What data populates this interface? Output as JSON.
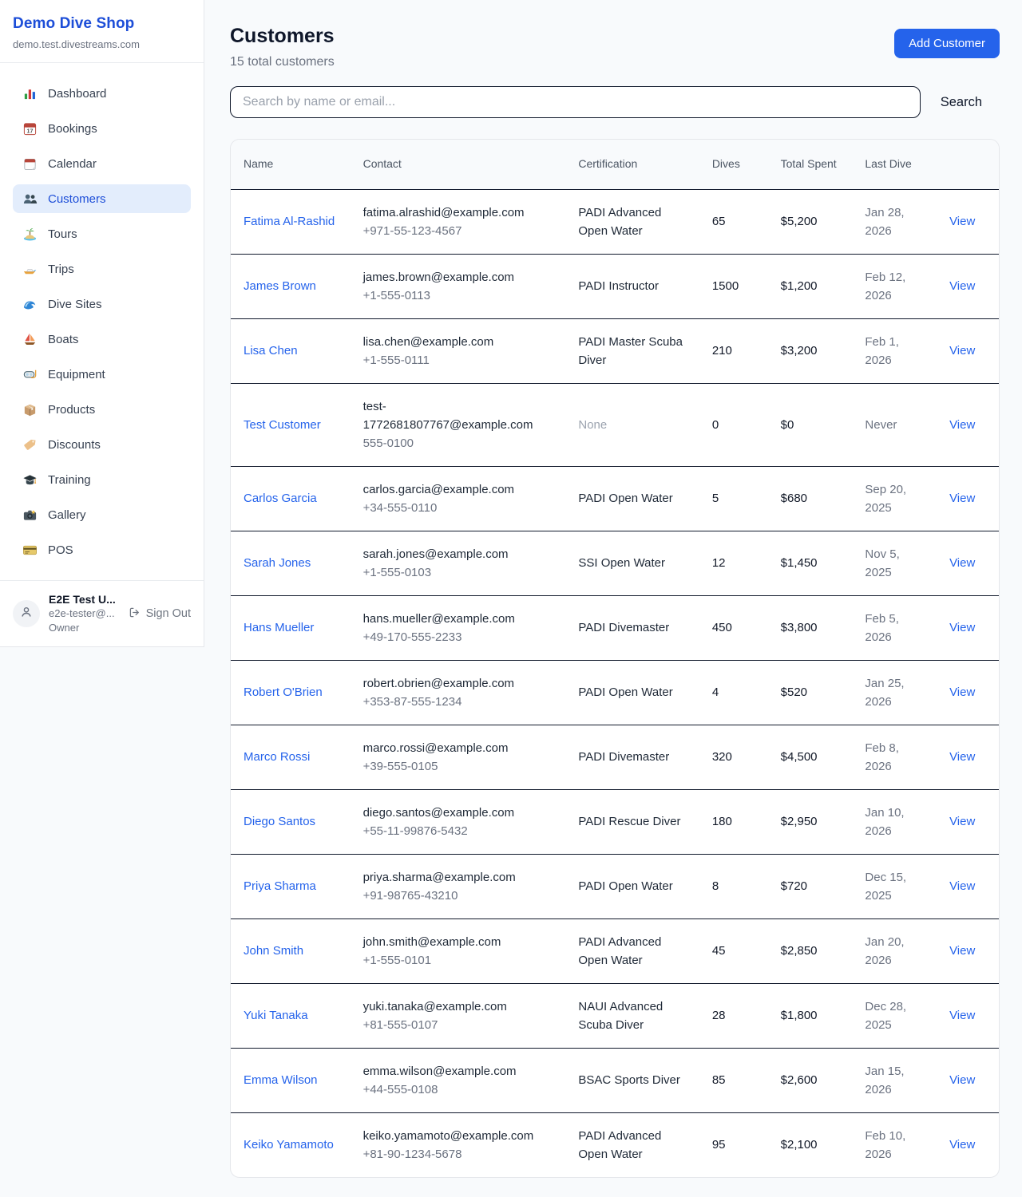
{
  "colors": {
    "accent_blue": "#2563eb",
    "link_blue": "#2563eb",
    "active_nav_bg": "#e3edfc",
    "active_nav_text": "#1d4ed8",
    "page_bg": "#f8fafc",
    "row_divider": "#10182b",
    "muted_text": "#6b7280"
  },
  "sidebar": {
    "shop_name": "Demo Dive Shop",
    "shop_domain": "demo.test.divestreams.com",
    "items": [
      {
        "label": "Dashboard",
        "icon": "bar-chart",
        "active": false
      },
      {
        "label": "Bookings",
        "icon": "bookings-calendar",
        "active": false
      },
      {
        "label": "Calendar",
        "icon": "tear-off-calendar",
        "active": false
      },
      {
        "label": "Customers",
        "icon": "people",
        "active": true
      },
      {
        "label": "Tours",
        "icon": "desert-island",
        "active": false
      },
      {
        "label": "Trips",
        "icon": "speedboat",
        "active": false
      },
      {
        "label": "Dive Sites",
        "icon": "wave",
        "active": false
      },
      {
        "label": "Boats",
        "icon": "sailboat",
        "active": false
      },
      {
        "label": "Equipment",
        "icon": "diving-mask",
        "active": false
      },
      {
        "label": "Products",
        "icon": "package",
        "active": false
      },
      {
        "label": "Discounts",
        "icon": "price-tag",
        "active": false
      },
      {
        "label": "Training",
        "icon": "graduation-cap",
        "active": false
      },
      {
        "label": "Gallery",
        "icon": "camera",
        "active": false
      },
      {
        "label": "POS",
        "icon": "credit-card",
        "active": false
      }
    ],
    "user": {
      "name": "E2E Test U...",
      "email": "e2e-tester@...",
      "role": "Owner",
      "sign_out_label": "Sign Out"
    }
  },
  "header": {
    "title": "Customers",
    "subtitle": "15 total customers",
    "add_button": "Add Customer"
  },
  "search": {
    "placeholder": "Search by name or email...",
    "button": "Search"
  },
  "table": {
    "columns": [
      "Name",
      "Contact",
      "Certification",
      "Dives",
      "Total Spent",
      "Last Dive",
      ""
    ],
    "view_label": "View",
    "rows": [
      {
        "name": "Fatima Al-Rashid",
        "email": "fatima.alrashid@example.com",
        "phone": "+971-55-123-4567",
        "certification": "PADI Advanced Open Water",
        "certification_muted": false,
        "dives": "65",
        "total_spent": "$5,200",
        "last_dive": "Jan 28, 2026"
      },
      {
        "name": "James Brown",
        "email": "james.brown@example.com",
        "phone": "+1-555-0113",
        "certification": "PADI Instructor",
        "certification_muted": false,
        "dives": "1500",
        "total_spent": "$1,200",
        "last_dive": "Feb 12, 2026"
      },
      {
        "name": "Lisa Chen",
        "email": "lisa.chen@example.com",
        "phone": "+1-555-0111",
        "certification": "PADI Master Scuba Diver",
        "certification_muted": false,
        "dives": "210",
        "total_spent": "$3,200",
        "last_dive": "Feb 1, 2026"
      },
      {
        "name": "Test Customer",
        "email": "test-1772681807767@example.com",
        "phone": "555-0100",
        "certification": "None",
        "certification_muted": true,
        "dives": "0",
        "total_spent": "$0",
        "last_dive": "Never"
      },
      {
        "name": "Carlos Garcia",
        "email": "carlos.garcia@example.com",
        "phone": "+34-555-0110",
        "certification": "PADI Open Water",
        "certification_muted": false,
        "dives": "5",
        "total_spent": "$680",
        "last_dive": "Sep 20, 2025"
      },
      {
        "name": "Sarah Jones",
        "email": "sarah.jones@example.com",
        "phone": "+1-555-0103",
        "certification": "SSI Open Water",
        "certification_muted": false,
        "dives": "12",
        "total_spent": "$1,450",
        "last_dive": "Nov 5, 2025"
      },
      {
        "name": "Hans Mueller",
        "email": "hans.mueller@example.com",
        "phone": "+49-170-555-2233",
        "certification": "PADI Divemaster",
        "certification_muted": false,
        "dives": "450",
        "total_spent": "$3,800",
        "last_dive": "Feb 5, 2026"
      },
      {
        "name": "Robert O'Brien",
        "email": "robert.obrien@example.com",
        "phone": "+353-87-555-1234",
        "certification": "PADI Open Water",
        "certification_muted": false,
        "dives": "4",
        "total_spent": "$520",
        "last_dive": "Jan 25, 2026"
      },
      {
        "name": "Marco Rossi",
        "email": "marco.rossi@example.com",
        "phone": "+39-555-0105",
        "certification": "PADI Divemaster",
        "certification_muted": false,
        "dives": "320",
        "total_spent": "$4,500",
        "last_dive": "Feb 8, 2026"
      },
      {
        "name": "Diego Santos",
        "email": "diego.santos@example.com",
        "phone": "+55-11-99876-5432",
        "certification": "PADI Rescue Diver",
        "certification_muted": false,
        "dives": "180",
        "total_spent": "$2,950",
        "last_dive": "Jan 10, 2026"
      },
      {
        "name": "Priya Sharma",
        "email": "priya.sharma@example.com",
        "phone": "+91-98765-43210",
        "certification": "PADI Open Water",
        "certification_muted": false,
        "dives": "8",
        "total_spent": "$720",
        "last_dive": "Dec 15, 2025"
      },
      {
        "name": "John Smith",
        "email": "john.smith@example.com",
        "phone": "+1-555-0101",
        "certification": "PADI Advanced Open Water",
        "certification_muted": false,
        "dives": "45",
        "total_spent": "$2,850",
        "last_dive": "Jan 20, 2026"
      },
      {
        "name": "Yuki Tanaka",
        "email": "yuki.tanaka@example.com",
        "phone": "+81-555-0107",
        "certification": "NAUI Advanced Scuba Diver",
        "certification_muted": false,
        "dives": "28",
        "total_spent": "$1,800",
        "last_dive": "Dec 28, 2025"
      },
      {
        "name": "Emma Wilson",
        "email": "emma.wilson@example.com",
        "phone": "+44-555-0108",
        "certification": "BSAC Sports Diver",
        "certification_muted": false,
        "dives": "85",
        "total_spent": "$2,600",
        "last_dive": "Jan 15, 2026"
      },
      {
        "name": "Keiko Yamamoto",
        "email": "keiko.yamamoto@example.com",
        "phone": "+81-90-1234-5678",
        "certification": "PADI Advanced Open Water",
        "certification_muted": false,
        "dives": "95",
        "total_spent": "$2,100",
        "last_dive": "Feb 10, 2026"
      }
    ]
  }
}
